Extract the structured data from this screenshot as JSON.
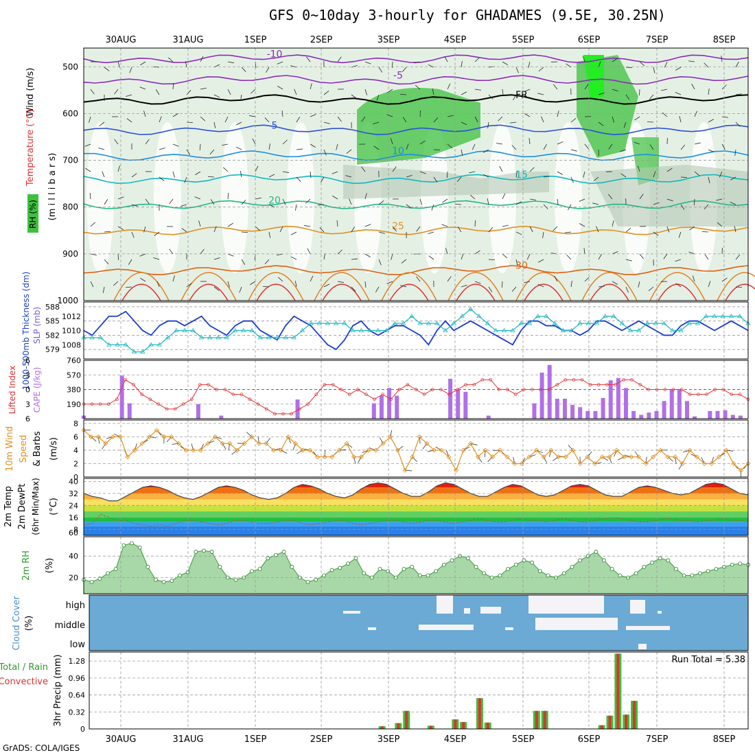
{
  "title": "GFS 0~10day 3-hourly for GHADAMES (9.5E, 30.25N)",
  "footer": "GrADS: COLA/IGES",
  "colors": {
    "rh_fill": "#3ec03e",
    "rh_light": "#e5f0e5",
    "rh_grey": "#b4c8b4",
    "thickness": "#1a3bd0",
    "slp": "#22b8c0",
    "cape_bar": "#b070e8",
    "lifted": "#e03030",
    "wind10": "#e09020",
    "rh2m": "#6cbf6c",
    "cloud_bg": "#6aaad4",
    "cloud_fill": "#f4f4f8",
    "precip_total": "#3cc03c",
    "precip_conv": "#e03030"
  },
  "x_axis": {
    "dates": [
      "30AUG",
      "31AUG",
      "1SEP",
      "2SEP",
      "3SEP",
      "4SEP",
      "5SEP",
      "6SEP",
      "7SEP",
      "8SEP"
    ]
  },
  "chart_data": [
    {
      "id": "upper_air",
      "type": "heatmap",
      "ylabel_parts": [
        "Wind (m/s)",
        "Temperature (°C)",
        "RH (%)"
      ],
      "ylabel2": "(m i l l i b a r s)",
      "y_ticks": [
        500,
        600,
        700,
        800,
        900,
        1000
      ],
      "ylim": [
        1000,
        460
      ],
      "temperature_contours": [
        {
          "label": "-10",
          "level_mb": 483,
          "color": "#8a2cb8"
        },
        {
          "label": "-5",
          "level_mb": 528,
          "color": "#8a2cb8"
        },
        {
          "label": "FR",
          "level_mb": 570,
          "color": "#000000"
        },
        {
          "label": "5",
          "level_mb": 635,
          "color": "#2a50d8"
        },
        {
          "label": "10",
          "level_mb": 690,
          "color": "#1a90e0"
        },
        {
          "label": "15",
          "level_mb": 740,
          "color": "#10b8c0"
        },
        {
          "label": "20",
          "level_mb": 795,
          "color": "#20b888"
        },
        {
          "label": "25",
          "level_mb": 850,
          "color": "#e09020"
        },
        {
          "label": "30",
          "level_mb": 935,
          "color": "#e06010"
        }
      ]
    },
    {
      "id": "thickness_slp",
      "type": "line",
      "ylabel_left": "1000-500mb Thickness (dm)",
      "ylabel_right": "SLP (mb)",
      "left_ticks": [
        579,
        582,
        585,
        588
      ],
      "right_ticks": [
        1008,
        1010,
        1012
      ],
      "series": [
        {
          "name": "Thickness",
          "axis": "left",
          "values": [
            583,
            582,
            584,
            586,
            586,
            587,
            585,
            583,
            582,
            584,
            585,
            585,
            584,
            585,
            586,
            584,
            583,
            582,
            584,
            585,
            585,
            583,
            582,
            581,
            584,
            586,
            585,
            584,
            582,
            580,
            579,
            581,
            584,
            585,
            583,
            582,
            583,
            584,
            584,
            583,
            582,
            580,
            583,
            585,
            583,
            584,
            585,
            584,
            583,
            582,
            581,
            580,
            583,
            585,
            585,
            584,
            584,
            583,
            583,
            582,
            583,
            585,
            585,
            584,
            583,
            584,
            585,
            584,
            583,
            582,
            582,
            584,
            585,
            585,
            584,
            583,
            584,
            585,
            584,
            583
          ]
        },
        {
          "name": "SLP",
          "axis": "right",
          "values": [
            1009,
            1009,
            1009,
            1008,
            1008,
            1008,
            1007,
            1007,
            1008,
            1008,
            1009,
            1010,
            1010,
            1010,
            1009,
            1009,
            1009,
            1009,
            1010,
            1010,
            1010,
            1009,
            1009,
            1009,
            1009,
            1009,
            1010,
            1011,
            1011,
            1011,
            1011,
            1011,
            1010,
            1010,
            1010,
            1010,
            1010,
            1011,
            1011,
            1012,
            1011,
            1011,
            1011,
            1010,
            1011,
            1012,
            1013,
            1012,
            1011,
            1010,
            1010,
            1010,
            1011,
            1011,
            1012,
            1012,
            1011,
            1010,
            1010,
            1011,
            1011,
            1011,
            1012,
            1012,
            1011,
            1010,
            1010,
            1011,
            1011,
            1011,
            1010,
            1010,
            1011,
            1011,
            1012,
            1012,
            1012,
            1012,
            1012,
            1011
          ]
        }
      ]
    },
    {
      "id": "lifted_cape",
      "type": "bar",
      "ylabel_left": "Lifted Index",
      "ylabel_right": "CAPE (J/kg)",
      "left_ticks": [
        "-6",
        "-3",
        "0",
        "3",
        "6"
      ],
      "right_ticks": [
        190,
        380,
        570,
        760
      ],
      "cape": [
        40,
        0,
        0,
        0,
        0,
        560,
        200,
        0,
        0,
        0,
        0,
        0,
        0,
        0,
        0,
        190,
        0,
        0,
        40,
        0,
        0,
        0,
        0,
        0,
        0,
        0,
        0,
        0,
        250,
        0,
        0,
        0,
        0,
        0,
        0,
        0,
        0,
        0,
        200,
        300,
        400,
        300,
        0,
        0,
        0,
        0,
        0,
        0,
        520,
        380,
        350,
        0,
        0,
        40,
        0,
        0,
        0,
        0,
        0,
        200,
        600,
        700,
        260,
        260,
        180,
        150,
        100,
        100,
        270,
        500,
        530,
        400,
        100,
        50,
        80,
        100,
        230,
        380,
        380,
        230,
        30,
        0,
        100,
        100,
        110,
        50,
        40,
        0
      ],
      "lifted_index": [
        3,
        3,
        3,
        3,
        2,
        -2,
        -1,
        1,
        2,
        3,
        4,
        4,
        3,
        2,
        -1,
        -1,
        0,
        0,
        1,
        1,
        2,
        3,
        4,
        5,
        5,
        5,
        4,
        3,
        1,
        -1,
        -1,
        0,
        1,
        0,
        1,
        2,
        1,
        2,
        0,
        -1,
        0,
        1,
        0,
        0,
        1,
        0,
        -1,
        -1,
        -2,
        -2,
        0,
        0,
        1,
        0,
        0,
        0,
        0,
        -1,
        -2,
        -2,
        -2,
        -1,
        -1,
        -1,
        -1,
        -2,
        -2,
        -1,
        0,
        0,
        0,
        0,
        0,
        1,
        1,
        1,
        0,
        0,
        1,
        1,
        2
      ]
    },
    {
      "id": "wind10m",
      "type": "line",
      "ylabel": "10m Wind Speed & Barbs (m/s)",
      "y_ticks": [
        0,
        2,
        4,
        6,
        8
      ],
      "series": [
        {
          "name": "Speed",
          "values": [
            7,
            6,
            6,
            5,
            6,
            6,
            3,
            4,
            5,
            6,
            7,
            6,
            6,
            5,
            4,
            4,
            4,
            5,
            6,
            5,
            5,
            4,
            5,
            6,
            5,
            5,
            4,
            4,
            6,
            5,
            4,
            4,
            3,
            3,
            3,
            4,
            5,
            3,
            3,
            4,
            4,
            5,
            6,
            4,
            1,
            3,
            6,
            5,
            4,
            4,
            3,
            1,
            4,
            5,
            3,
            4,
            3,
            4,
            3,
            2,
            2,
            3,
            4,
            3,
            4,
            3,
            3,
            4,
            2,
            3,
            2,
            3,
            3,
            4,
            3,
            3,
            3,
            2,
            3,
            4,
            3,
            3,
            2,
            4,
            3,
            2,
            2,
            3,
            4,
            2,
            1,
            2
          ]
        }
      ]
    },
    {
      "id": "temp2m",
      "type": "area",
      "ylabel": "2m Temp 2m DewPt (6hr Min/Max) (°C)",
      "y_ticks": [
        8,
        16,
        24,
        32,
        40
      ],
      "series": [
        {
          "name": "Temp",
          "values": [
            32,
            30,
            29,
            27,
            27,
            30,
            33,
            36,
            37,
            36,
            34,
            31,
            29,
            28,
            30,
            33,
            36,
            37,
            36,
            34,
            31,
            29,
            28,
            29,
            32,
            36,
            38,
            37,
            35,
            32,
            30,
            29,
            31,
            35,
            38,
            39,
            38,
            35,
            32,
            30,
            30,
            33,
            37,
            39,
            38,
            35,
            32,
            30,
            30,
            33,
            36,
            38,
            37,
            34,
            31,
            30,
            31,
            34,
            37,
            38,
            37,
            34,
            31,
            30,
            30,
            33,
            36,
            37,
            36,
            34,
            32,
            31,
            32,
            35,
            38,
            39,
            38,
            35,
            32,
            31
          ]
        },
        {
          "name": "DewPt",
          "values": [
            11,
            12,
            18,
            16,
            14,
            14,
            12,
            11,
            10,
            11,
            10,
            12,
            14,
            14,
            13,
            12,
            11,
            12,
            14,
            14,
            13,
            12,
            12,
            13,
            14,
            14,
            12,
            11,
            12,
            13,
            14,
            14,
            12,
            11,
            12,
            13,
            14,
            14,
            13,
            12,
            13,
            14,
            14,
            13,
            12,
            13,
            14,
            15,
            14,
            13,
            13,
            14,
            15,
            14,
            14,
            13,
            14,
            15,
            14,
            13,
            13,
            14,
            15,
            16,
            15,
            14,
            13,
            13,
            14,
            15,
            15,
            14,
            14,
            13,
            14,
            14,
            15,
            14,
            14,
            13
          ]
        }
      ]
    },
    {
      "id": "rh2m",
      "type": "area",
      "ylabel": "2m RH (%)",
      "y_ticks": [
        20,
        40
      ],
      "series": [
        {
          "name": "RH",
          "values": [
            18,
            16,
            19,
            24,
            28,
            50,
            52,
            48,
            30,
            18,
            16,
            17,
            22,
            25,
            44,
            45,
            44,
            30,
            20,
            18,
            20,
            26,
            28,
            38,
            41,
            44,
            30,
            20,
            16,
            18,
            22,
            27,
            29,
            33,
            38,
            24,
            20,
            28,
            26,
            20,
            28,
            30,
            22,
            22,
            26,
            32,
            36,
            40,
            38,
            30,
            24,
            20,
            22,
            28,
            32,
            36,
            34,
            26,
            22,
            20,
            24,
            30,
            36,
            40,
            44,
            36,
            28,
            22,
            20,
            24,
            30,
            34,
            38,
            36,
            28,
            22,
            22,
            24,
            26,
            28,
            30,
            32,
            33,
            32
          ]
        }
      ]
    },
    {
      "id": "cloud",
      "type": "heatmap",
      "ylabel": "Cloud Cover (%)",
      "y_labels": [
        "high",
        "middle",
        "low"
      ]
    },
    {
      "id": "precip",
      "type": "bar",
      "ylabel_left": "Total / Rain",
      "ylabel_left2": "Convective",
      "ylabel": "3hr Precip (mm)",
      "y_ticks": [
        0,
        0.32,
        0.64,
        0.96,
        1.28
      ],
      "annotation": "Run Total = 5.38",
      "values": [
        0,
        0,
        0,
        0,
        0,
        0,
        0,
        0,
        0,
        0,
        0,
        0,
        0,
        0,
        0,
        0,
        0,
        0,
        0,
        0,
        0,
        0,
        0,
        0,
        0,
        0,
        0,
        0,
        0,
        0,
        0,
        0,
        0,
        0,
        0,
        0,
        0.05,
        0,
        0.11,
        0.34,
        0,
        0,
        0.06,
        0,
        0,
        0.18,
        0.13,
        0,
        0.58,
        0.12,
        0,
        0,
        0,
        0,
        0,
        0.34,
        0.34,
        0,
        0,
        0,
        0,
        0,
        0,
        0.07,
        0.25,
        1.42,
        0.27,
        0.53,
        0,
        0,
        0,
        0,
        0,
        0,
        0,
        0,
        0,
        0,
        0,
        0,
        0,
        0
      ]
    }
  ]
}
